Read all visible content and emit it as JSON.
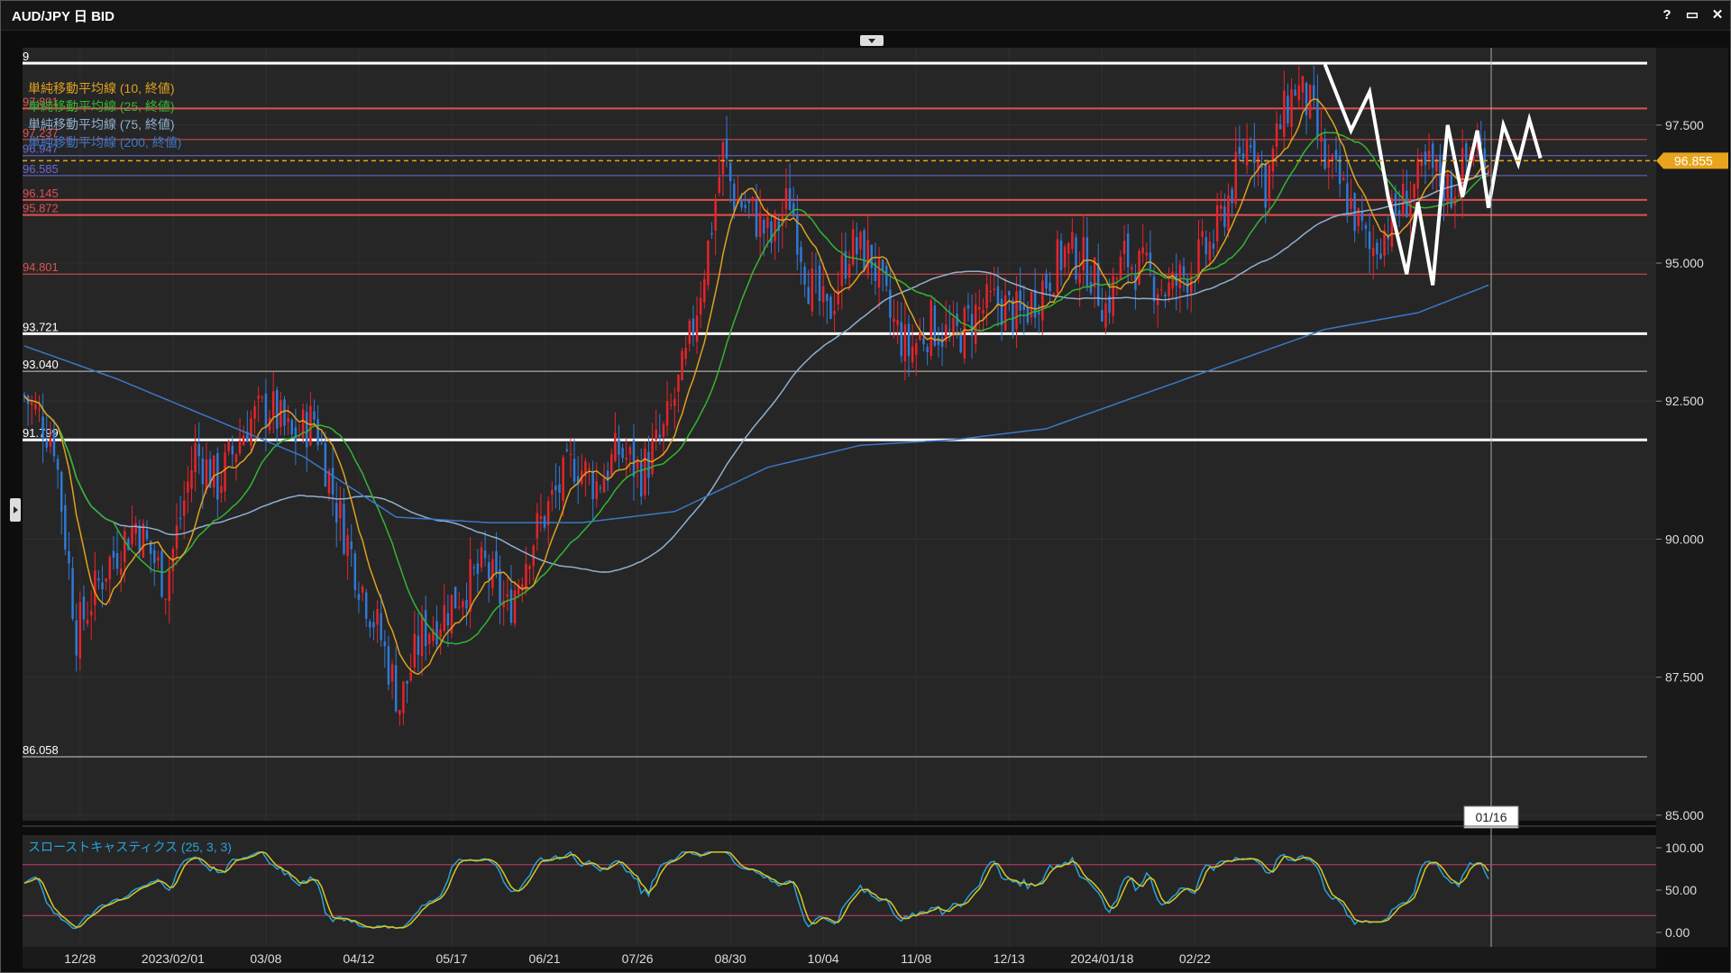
{
  "window": {
    "title": "AUD/JPY 日 BID",
    "help_label": "?",
    "maximize_label": "▭",
    "close_label": "✕"
  },
  "colors": {
    "bg": "#262626",
    "up": "#e8232a",
    "down": "#2f79d6",
    "sma10": "#e0a020",
    "sma25": "#33b533",
    "sma75": "#8fb0d0",
    "sma200": "#3a78c8",
    "white": "#ffffff",
    "red_level": "#e05050",
    "blue_level": "#6a6ad8",
    "price": "#e8a41c"
  },
  "legend": [
    {
      "label": "単純移動平均線 (10, 終値)",
      "color": "#e0a020"
    },
    {
      "label": "単純移動平均線 (25, 終値)",
      "color": "#33b533"
    },
    {
      "label": "単純移動平均線 (75, 終値)",
      "color": "#8fb0d0"
    },
    {
      "label": "単純移動平均線 (200, 終値)",
      "color": "#3a78c8"
    }
  ],
  "stoch_label": "スローストキャスティクス (25, 3, 3)",
  "crosshair_date": "01/16",
  "current_price": "96.855",
  "chart_data": {
    "type": "candlestick",
    "y_ticks": [
      85.0,
      87.5,
      90.0,
      92.5,
      95.0,
      97.5
    ],
    "y_tick_labels": [
      "85.000",
      "87.500",
      "90.000",
      "92.500",
      "95.000",
      "97.500"
    ],
    "ylim": [
      84.9,
      98.9
    ],
    "x_tick_labels": [
      "12/28",
      "2023/02/01",
      "03/08",
      "04/12",
      "05/17",
      "06/21",
      "07/26",
      "08/30",
      "10/04",
      "11/08",
      "12/13",
      "2024/01/18",
      "02/22"
    ],
    "levels": [
      {
        "value": 98.62,
        "label": "9",
        "color": "#ffffff",
        "width": 3
      },
      {
        "value": 97.801,
        "label": "97.801",
        "color": "#e05050",
        "width": 2
      },
      {
        "value": 97.237,
        "label": "97.237",
        "color": "#e05050",
        "width": 1
      },
      {
        "value": 96.947,
        "label": "96.947",
        "color": "#6a6ad8",
        "width": 1
      },
      {
        "value": 96.585,
        "label": "96.585",
        "color": "#6a6ad8",
        "width": 1
      },
      {
        "value": 96.145,
        "label": "96.145",
        "color": "#e05050",
        "width": 2
      },
      {
        "value": 95.872,
        "label": "95.872",
        "color": "#e05050",
        "width": 2
      },
      {
        "value": 94.801,
        "label": "94.801",
        "color": "#e05050",
        "width": 1
      },
      {
        "value": 93.721,
        "label": "93.721",
        "color": "#ffffff",
        "width": 3
      },
      {
        "value": 93.04,
        "label": "93.040",
        "color": "#cccccc",
        "width": 1
      },
      {
        "value": 91.799,
        "label": "91.799",
        "color": "#ffffff",
        "width": 3
      },
      {
        "value": 86.058,
        "label": "86.058",
        "color": "#cccccc",
        "width": 1
      }
    ],
    "price_anchors": [
      [
        0,
        92.6
      ],
      [
        8,
        91.8
      ],
      [
        14,
        88.3
      ],
      [
        22,
        89.5
      ],
      [
        30,
        90.3
      ],
      [
        38,
        89.2
      ],
      [
        46,
        91.6
      ],
      [
        52,
        91.0
      ],
      [
        60,
        92.1
      ],
      [
        66,
        92.4
      ],
      [
        72,
        91.8
      ],
      [
        78,
        92.2
      ],
      [
        84,
        90.6
      ],
      [
        90,
        89.3
      ],
      [
        96,
        88.2
      ],
      [
        101,
        87.0
      ],
      [
        107,
        88.3
      ],
      [
        112,
        88.6
      ],
      [
        118,
        89.1
      ],
      [
        124,
        89.5
      ],
      [
        130,
        88.7
      ],
      [
        136,
        89.9
      ],
      [
        142,
        90.7
      ],
      [
        148,
        91.4
      ],
      [
        154,
        91.0
      ],
      [
        160,
        91.6
      ],
      [
        166,
        91.2
      ],
      [
        172,
        91.9
      ],
      [
        178,
        93.2
      ],
      [
        184,
        95.3
      ],
      [
        188,
        97.0
      ],
      [
        191,
        96.2
      ],
      [
        196,
        95.9
      ],
      [
        201,
        95.4
      ],
      [
        206,
        96.2
      ],
      [
        211,
        94.7
      ],
      [
        216,
        94.0
      ],
      [
        222,
        95.3
      ],
      [
        228,
        95.1
      ],
      [
        233,
        94.0
      ],
      [
        238,
        93.4
      ],
      [
        244,
        93.9
      ],
      [
        250,
        93.6
      ],
      [
        256,
        94.1
      ],
      [
        262,
        94.3
      ],
      [
        268,
        94.0
      ],
      [
        274,
        94.6
      ],
      [
        280,
        95.2
      ],
      [
        286,
        95.0
      ],
      [
        291,
        94.2
      ],
      [
        296,
        95.1
      ],
      [
        302,
        94.8
      ],
      [
        308,
        94.5
      ],
      [
        314,
        94.9
      ],
      [
        320,
        95.4
      ],
      [
        326,
        96.6
      ],
      [
        330,
        97.4
      ],
      [
        334,
        96.4
      ],
      [
        338,
        97.5
      ],
      [
        342,
        98.2
      ],
      [
        346,
        97.8
      ],
      [
        350,
        96.8
      ],
      [
        356,
        96.2
      ],
      [
        362,
        95.2
      ],
      [
        366,
        95.6
      ],
      [
        372,
        96.2
      ],
      [
        378,
        96.7
      ],
      [
        384,
        96.3
      ],
      [
        390,
        97.1
      ],
      [
        394,
        96.9
      ]
    ],
    "n_bars": 395,
    "last_bar_index": 394,
    "x_tick_bar_index": [
      15,
      40,
      65,
      90,
      115,
      140,
      165,
      190,
      215,
      240,
      265,
      290,
      315
    ],
    "sma200_anchors": [
      [
        0,
        93.5
      ],
      [
        25,
        92.9
      ],
      [
        50,
        92.2
      ],
      [
        75,
        91.5
      ],
      [
        100,
        90.4
      ],
      [
        125,
        90.3
      ],
      [
        150,
        90.3
      ],
      [
        175,
        90.5
      ],
      [
        200,
        91.3
      ],
      [
        225,
        91.7
      ],
      [
        250,
        91.8
      ],
      [
        275,
        92.0
      ],
      [
        300,
        92.6
      ],
      [
        325,
        93.2
      ],
      [
        350,
        93.8
      ],
      [
        375,
        94.1
      ],
      [
        394,
        94.6
      ]
    ],
    "zigzag": [
      [
        350,
        98.6
      ],
      [
        357,
        97.4
      ],
      [
        362,
        98.1
      ],
      [
        367,
        96.2
      ],
      [
        372,
        94.8
      ],
      [
        375,
        96.1
      ],
      [
        379,
        94.6
      ],
      [
        383,
        97.5
      ],
      [
        387,
        96.2
      ],
      [
        391,
        97.4
      ],
      [
        394,
        96.0
      ],
      [
        398,
        97.5
      ],
      [
        402,
        96.8
      ],
      [
        405,
        97.6
      ],
      [
        408,
        96.9
      ]
    ],
    "stochastic": {
      "ylim": [
        0,
        100
      ],
      "levels": [
        80,
        20
      ],
      "ticks": [
        "100.00",
        "50.00",
        "0.00"
      ],
      "tick_values": [
        100,
        50,
        0
      ]
    }
  }
}
